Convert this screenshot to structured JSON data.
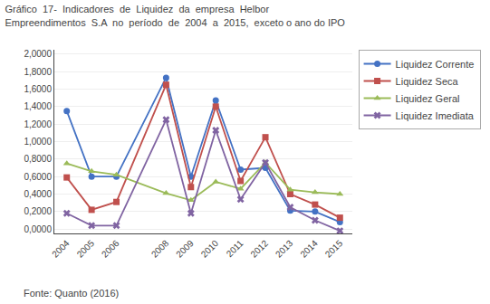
{
  "chart_data": {
    "type": "line",
    "title": "Gráfico  17-  Indicadores  de  Liquidez  da  empresa  Helbor  Empreendimentos  S.A  no  período  de  2004  a  2015,  exceto o ano do IPO",
    "annotations": [
      "Fonte: Quanto (2016)"
    ],
    "x": [
      2004,
      2005,
      2006,
      2008,
      2009,
      2010,
      2011,
      2012,
      2013,
      2014,
      2015
    ],
    "series": [
      {
        "name": "Liquidez Corrente",
        "color": "#4472C4",
        "marker": "circle",
        "values": [
          1.35,
          0.6,
          0.6,
          1.73,
          0.6,
          1.47,
          0.68,
          0.7,
          0.21,
          0.2,
          0.08
        ]
      },
      {
        "name": "Liquidez Seca",
        "color": "#C0504D",
        "marker": "square",
        "values": [
          0.59,
          0.22,
          0.31,
          1.65,
          0.48,
          1.4,
          0.55,
          1.05,
          0.4,
          0.28,
          0.13
        ]
      },
      {
        "name": "Liquidez Geral",
        "color": "#9BBB59",
        "marker": "triangle-up",
        "values": [
          0.75,
          0.66,
          0.62,
          0.41,
          0.33,
          0.54,
          0.46,
          0.76,
          0.45,
          0.42,
          0.4
        ]
      },
      {
        "name": "Liquidez Imediata",
        "color": "#8064A2",
        "marker": "x",
        "values": [
          0.18,
          0.04,
          0.04,
          1.25,
          0.18,
          1.13,
          0.34,
          0.76,
          0.25,
          0.1,
          -0.02
        ]
      }
    ],
    "xlim": [
      2003.5,
      2015.5
    ],
    "xticks": [
      2004,
      2005,
      2006,
      2008,
      2009,
      2010,
      2011,
      2012,
      2013,
      2014,
      2015
    ],
    "ylim": [
      -0.05,
      2.05
    ],
    "yticks": [
      {
        "value": 0.0,
        "label": "0,0000"
      },
      {
        "value": 0.2,
        "label": "0,2000"
      },
      {
        "value": 0.4,
        "label": "0,4000"
      },
      {
        "value": 0.6,
        "label": "0,6000"
      },
      {
        "value": 0.8,
        "label": "0,8000"
      },
      {
        "value": 1.0,
        "label": "1,0000"
      },
      {
        "value": 1.2,
        "label": "1,2000"
      },
      {
        "value": 1.4,
        "label": "1,4000"
      },
      {
        "value": 1.6,
        "label": "1,6000"
      },
      {
        "value": 1.8,
        "label": "1,8000"
      },
      {
        "value": 2.0,
        "label": "2,0000"
      }
    ],
    "grid": true,
    "legend": "right"
  }
}
